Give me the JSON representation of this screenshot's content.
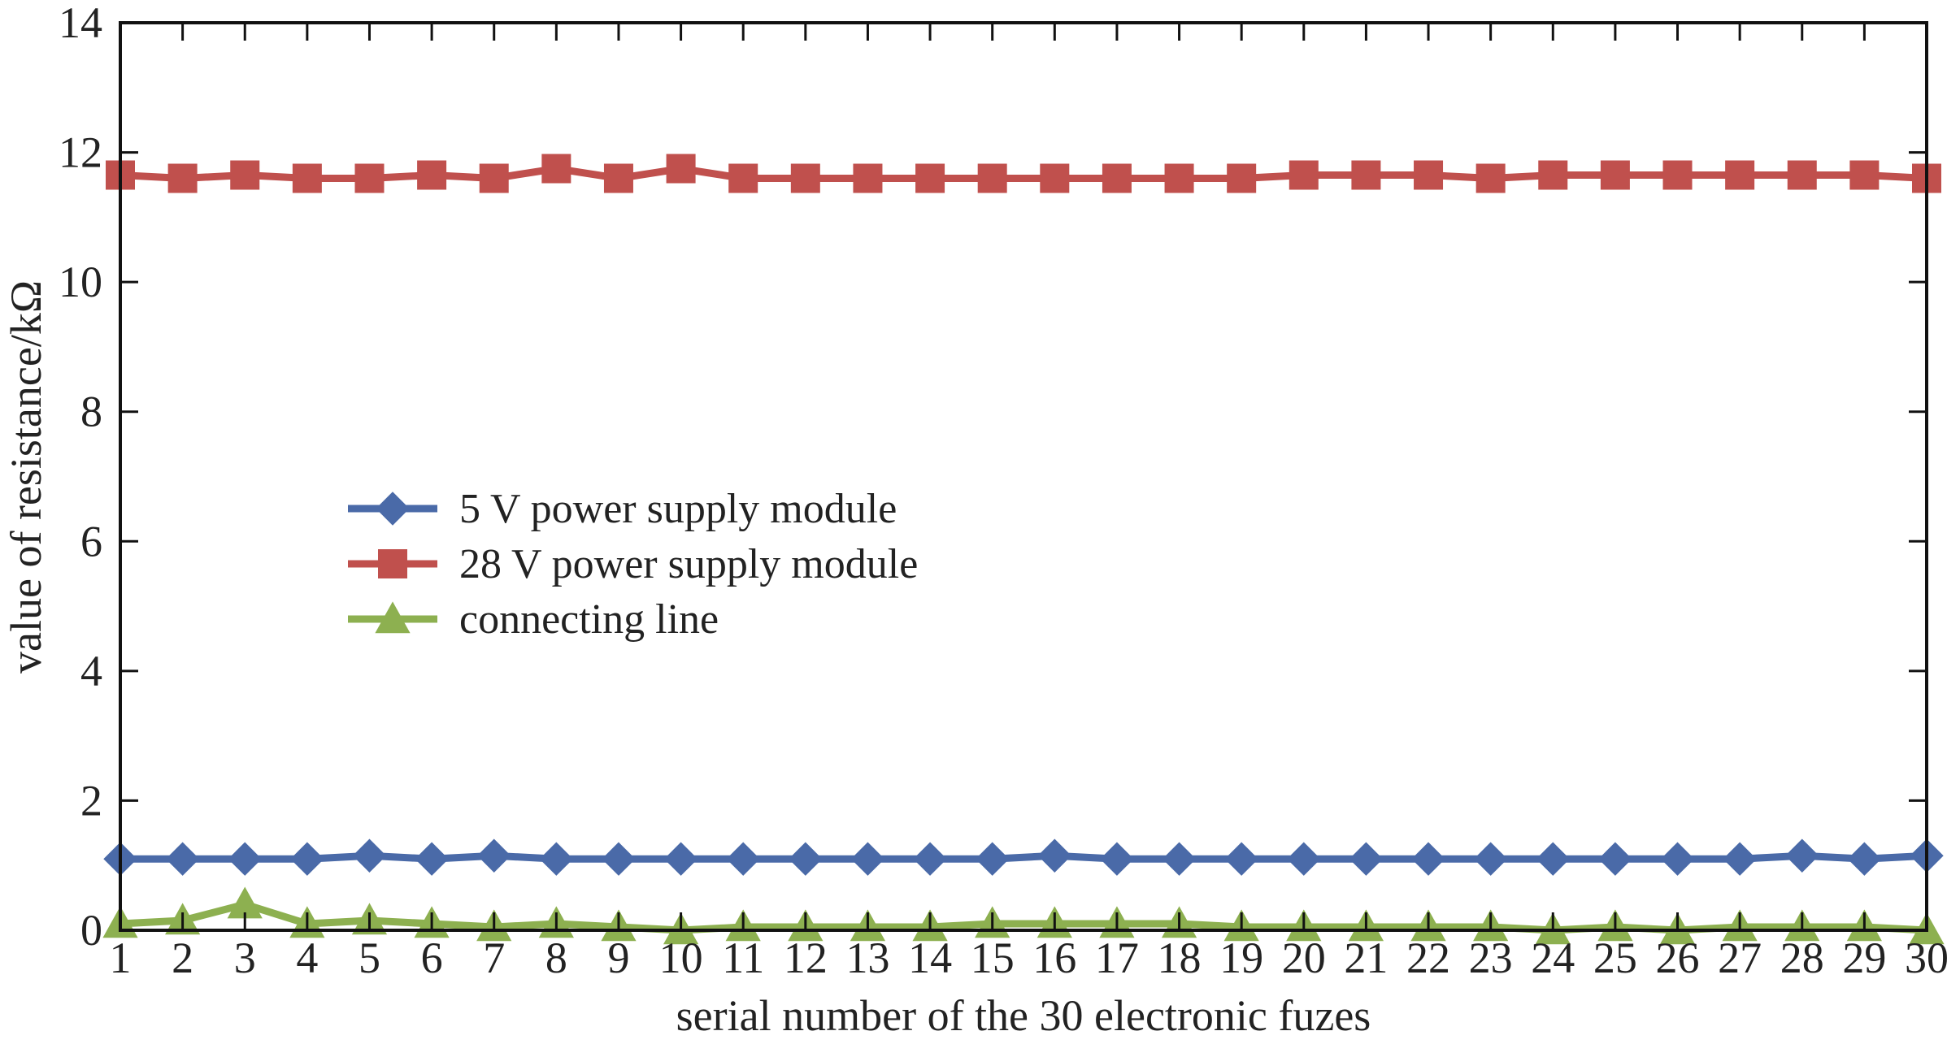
{
  "chart_data": {
    "type": "line",
    "xlabel": "serial number of the 30 electronic fuzes",
    "ylabel": "value of resistance/kΩ",
    "xlim": [
      1,
      30
    ],
    "ylim": [
      0,
      14
    ],
    "x": [
      1,
      2,
      3,
      4,
      5,
      6,
      7,
      8,
      9,
      10,
      11,
      12,
      13,
      14,
      15,
      16,
      17,
      18,
      19,
      20,
      21,
      22,
      23,
      24,
      25,
      26,
      27,
      28,
      29,
      30
    ],
    "xticks": [
      "1",
      "2",
      "3",
      "4",
      "5",
      "6",
      "7",
      "8",
      "9",
      "10",
      "11",
      "12",
      "13",
      "14",
      "15",
      "16",
      "17",
      "18",
      "19",
      "20",
      "21",
      "22",
      "23",
      "24",
      "25",
      "26",
      "27",
      "28",
      "29",
      "30"
    ],
    "yticks": [
      "0",
      "2",
      "4",
      "6",
      "8",
      "10",
      "12",
      "14"
    ],
    "ytick_values": [
      0,
      2,
      4,
      6,
      8,
      10,
      12,
      14
    ],
    "grid": false,
    "legend_placement": "center-left",
    "series": [
      {
        "name": "5 V power supply module",
        "marker": "diamond",
        "color": "#4a6aa8",
        "values": [
          1.1,
          1.1,
          1.1,
          1.1,
          1.15,
          1.1,
          1.15,
          1.1,
          1.1,
          1.1,
          1.1,
          1.1,
          1.1,
          1.1,
          1.1,
          1.15,
          1.1,
          1.1,
          1.1,
          1.1,
          1.1,
          1.1,
          1.1,
          1.1,
          1.1,
          1.1,
          1.1,
          1.15,
          1.1,
          1.15
        ]
      },
      {
        "name": "28 V power supply module",
        "marker": "square",
        "color": "#c0504d",
        "values": [
          11.65,
          11.6,
          11.65,
          11.6,
          11.6,
          11.65,
          11.6,
          11.75,
          11.6,
          11.75,
          11.6,
          11.6,
          11.6,
          11.6,
          11.6,
          11.6,
          11.6,
          11.6,
          11.6,
          11.65,
          11.65,
          11.65,
          11.6,
          11.65,
          11.65,
          11.65,
          11.65,
          11.65,
          11.65,
          11.6
        ]
      },
      {
        "name": "connecting line",
        "marker": "triangle",
        "color": "#8db050",
        "values": [
          0.1,
          0.15,
          0.4,
          0.1,
          0.15,
          0.1,
          0.05,
          0.1,
          0.05,
          0.0,
          0.05,
          0.05,
          0.05,
          0.05,
          0.1,
          0.1,
          0.1,
          0.1,
          0.05,
          0.05,
          0.05,
          0.05,
          0.05,
          0.0,
          0.05,
          0.0,
          0.05,
          0.05,
          0.05,
          0.0
        ]
      }
    ]
  }
}
